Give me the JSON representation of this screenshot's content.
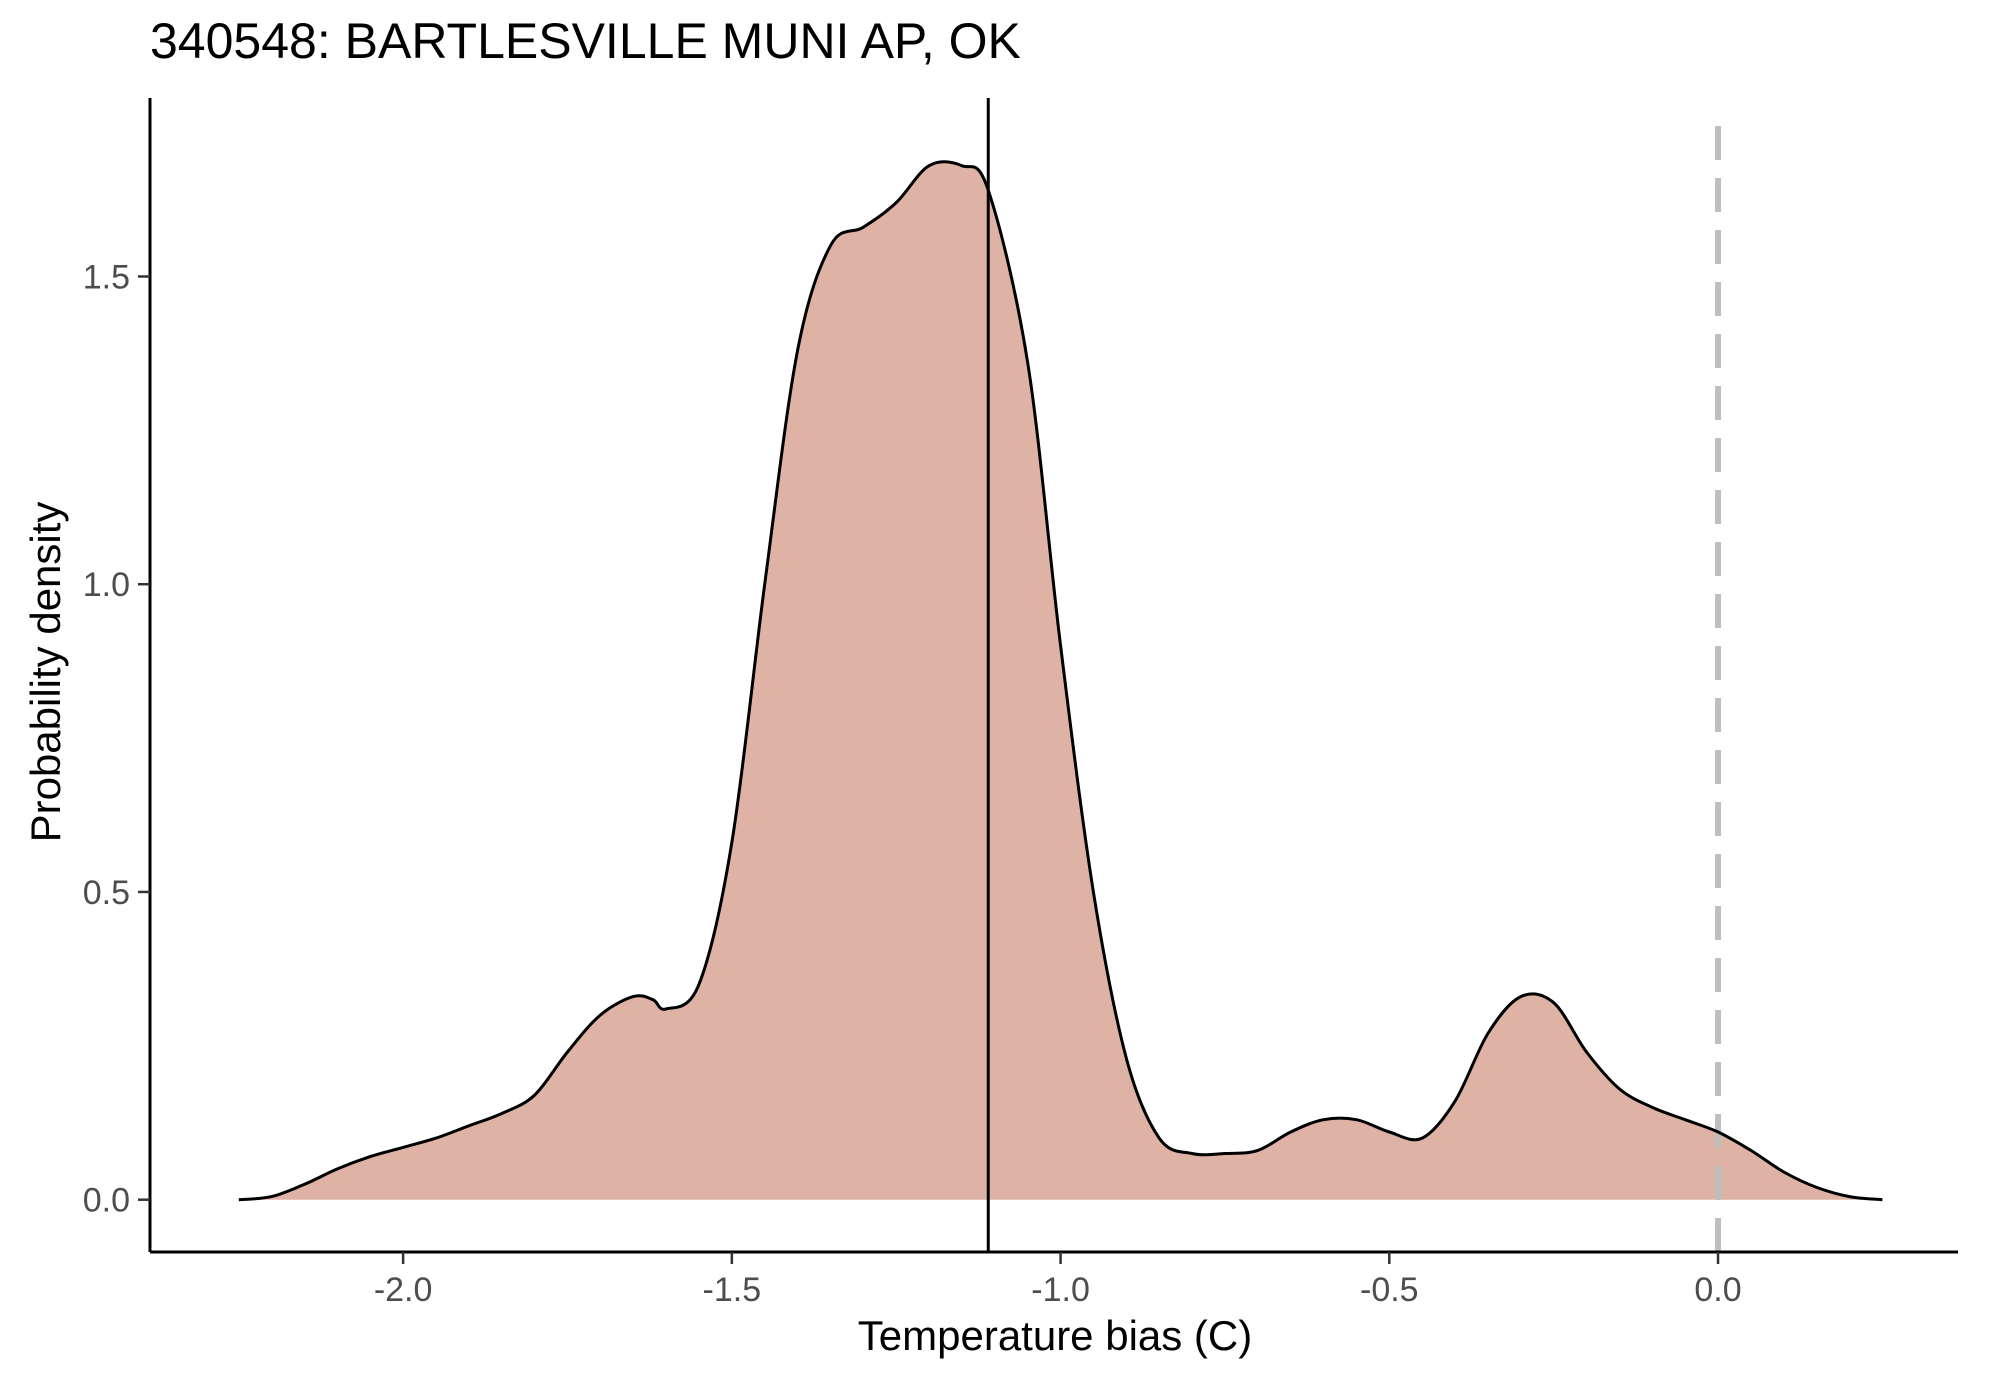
{
  "chart_data": {
    "type": "area",
    "title": "340548: BARTLESVILLE MUNI AP, OK",
    "xlabel": "Temperature bias (C)",
    "ylabel": "Probability density",
    "xlim": [
      -2.385,
      0.365
    ],
    "ylim": [
      -0.085,
      1.79
    ],
    "x_ticks": [
      -2.0,
      -1.5,
      -1.0,
      -0.5,
      0.0
    ],
    "x_tick_labels": [
      "-2.0",
      "-1.5",
      "-1.0",
      "-0.5",
      "0.0"
    ],
    "y_ticks": [
      0.0,
      0.5,
      1.0,
      1.5
    ],
    "y_tick_labels": [
      "0.0",
      "0.5",
      "1.0",
      "1.5"
    ],
    "grid": false,
    "series": [
      {
        "x": [
          -2.25,
          -2.2,
          -2.15,
          -2.1,
          -2.05,
          -2.0,
          -1.95,
          -1.9,
          -1.85,
          -1.8,
          -1.75,
          -1.7,
          -1.65,
          -1.62,
          -1.6,
          -1.55,
          -1.5,
          -1.45,
          -1.4,
          -1.35,
          -1.3,
          -1.25,
          -1.2,
          -1.15,
          -1.11,
          -1.05,
          -1.0,
          -0.95,
          -0.9,
          -0.85,
          -0.8,
          -0.75,
          -0.7,
          -0.65,
          -0.6,
          -0.55,
          -0.5,
          -0.45,
          -0.4,
          -0.35,
          -0.3,
          -0.25,
          -0.2,
          -0.15,
          -0.1,
          -0.05,
          0.0,
          0.05,
          0.1,
          0.15,
          0.2,
          0.25
        ],
        "values": [
          0.0,
          0.005,
          0.025,
          0.05,
          0.07,
          0.085,
          0.1,
          0.12,
          0.14,
          0.17,
          0.24,
          0.3,
          0.33,
          0.325,
          0.31,
          0.35,
          0.58,
          1.0,
          1.38,
          1.55,
          1.58,
          1.62,
          1.68,
          1.68,
          1.64,
          1.36,
          0.9,
          0.5,
          0.23,
          0.1,
          0.075,
          0.075,
          0.08,
          0.11,
          0.13,
          0.13,
          0.11,
          0.1,
          0.16,
          0.27,
          0.33,
          0.32,
          0.24,
          0.18,
          0.15,
          0.13,
          0.11,
          0.08,
          0.045,
          0.02,
          0.005,
          0.0
        ],
        "fill": "#deb3a5",
        "stroke": "#000000"
      }
    ],
    "vlines": [
      {
        "x": -1.11,
        "style": "solid",
        "color": "#000000"
      },
      {
        "x": 0.0,
        "style": "dashed",
        "color": "#bebebe"
      }
    ]
  }
}
